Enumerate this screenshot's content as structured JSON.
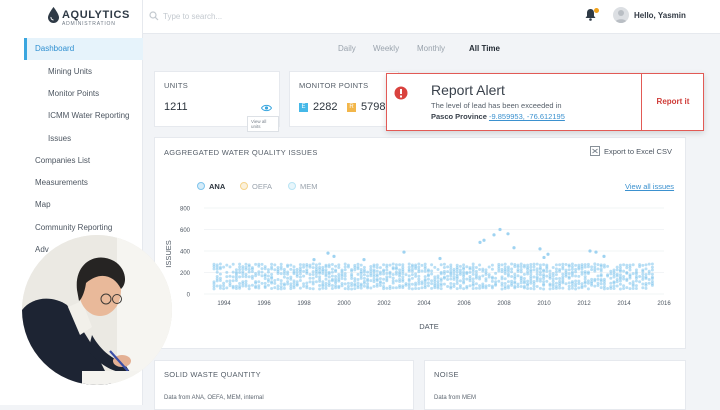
{
  "brand": {
    "name": "AQULYTICS",
    "sub": "ADMINISTRATION"
  },
  "sidebar": {
    "items": [
      {
        "label": "Dashboard"
      },
      {
        "label": "Mining Units"
      },
      {
        "label": "Monitor Points"
      },
      {
        "label": "ICMM Water Reporting"
      },
      {
        "label": "Issues"
      },
      {
        "label": "Companies List"
      },
      {
        "label": "Measurements"
      },
      {
        "label": "Map"
      },
      {
        "label": "Community Reporting"
      },
      {
        "label": "Adv"
      }
    ]
  },
  "header": {
    "search_placeholder": "Type to search...",
    "greeting": "Hello, Yasmin"
  },
  "tabs": [
    {
      "label": "Daily"
    },
    {
      "label": "Weekly"
    },
    {
      "label": "Monthly"
    },
    {
      "label": "All Time"
    }
  ],
  "units_card": {
    "title": "UNITS",
    "value": "1211",
    "view_label": "View all units"
  },
  "monitor_card": {
    "title": "MONITOR POINTS",
    "items": [
      {
        "badge": "E",
        "value": "2282",
        "color": "#45b8e8"
      },
      {
        "badge": "R",
        "value": "5798",
        "color": "#f2b64a"
      }
    ]
  },
  "alert": {
    "title": "Report Alert",
    "message": "The level of lead has been exceeded in",
    "location": "Pasco Province",
    "coords": "-9.859953, -76.612195",
    "button": "Report it"
  },
  "issues_card": {
    "title": "AGGREGATED WATER QUALITY ISSUES",
    "export_label": "Export to Excel CSV",
    "view_all": "View all issues"
  },
  "chart_data": {
    "type": "scatter",
    "series": [
      {
        "name": "ANA",
        "color": "#7fc4ec"
      },
      {
        "name": "OEFA",
        "color": "#f5d48c"
      },
      {
        "name": "MEM",
        "color": "#b9e4f4"
      }
    ],
    "active_series": "ANA",
    "xlabel": "DATE",
    "ylabel": "ISSUES",
    "xlim": [
      1993,
      2016
    ],
    "ylim": [
      0,
      800
    ],
    "x_ticks": [
      "1994",
      "1996",
      "1998",
      "2000",
      "2002",
      "2004",
      "2006",
      "2008",
      "2010",
      "2012",
      "2014",
      "2016"
    ],
    "y_ticks": [
      "0",
      "200",
      "400",
      "600",
      "800"
    ],
    "x_tick_values": [
      1994,
      1996,
      1998,
      2000,
      2002,
      2004,
      2006,
      2008,
      2010,
      2012,
      2014,
      2016
    ],
    "y_tick_values": [
      0,
      200,
      400,
      600,
      800
    ],
    "band": {
      "x_from": 1993.5,
      "x_to": 2015.5,
      "y_from": 50,
      "y_to": 270
    },
    "outliers": [
      {
        "x": 1999.2,
        "y": 380
      },
      {
        "x": 1999.5,
        "y": 350
      },
      {
        "x": 2001.0,
        "y": 320
      },
      {
        "x": 2004.8,
        "y": 330
      },
      {
        "x": 2003.0,
        "y": 390
      },
      {
        "x": 2007.0,
        "y": 500
      },
      {
        "x": 2007.5,
        "y": 550
      },
      {
        "x": 2007.8,
        "y": 600
      },
      {
        "x": 2008.2,
        "y": 560
      },
      {
        "x": 2006.8,
        "y": 480
      },
      {
        "x": 2008.5,
        "y": 430
      },
      {
        "x": 2009.8,
        "y": 420
      },
      {
        "x": 2010.2,
        "y": 370
      },
      {
        "x": 2010.0,
        "y": 340
      },
      {
        "x": 2012.3,
        "y": 400
      },
      {
        "x": 2012.6,
        "y": 390
      },
      {
        "x": 2013.0,
        "y": 350
      },
      {
        "x": 1998.5,
        "y": 320
      }
    ]
  },
  "solid_waste": {
    "title": "SOLID WASTE QUANTITY",
    "source": "Data from ANA, OEFA, MEM, internal"
  },
  "noise": {
    "title": "NOISE",
    "source": "Data from MEM"
  }
}
